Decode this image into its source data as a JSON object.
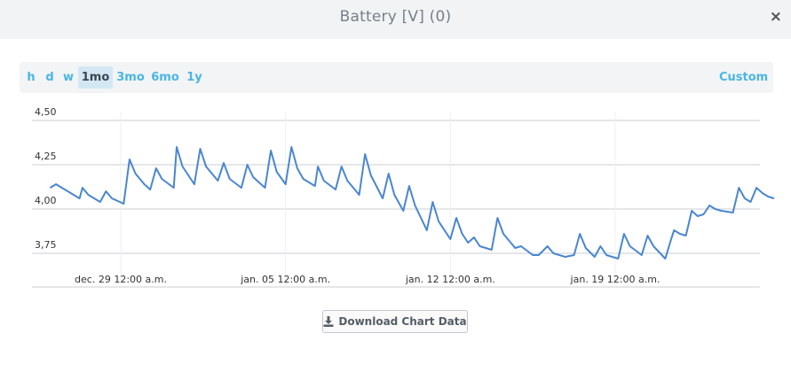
{
  "modal": {
    "title": "Battery [V] (0)",
    "close_icon": "×"
  },
  "range": {
    "buttons": [
      "h",
      "d",
      "w",
      "1mo",
      "3mo",
      "6mo",
      "1y"
    ],
    "active": "1mo",
    "custom_label": "Custom"
  },
  "download_label": "Download Chart Data",
  "chart_data": {
    "type": "line",
    "title": "",
    "xlabel": "",
    "ylabel": "",
    "y_ticks": [
      "4,50",
      "4,25",
      "4,00",
      "3,75"
    ],
    "y_tick_values": [
      4.5,
      4.25,
      4.0,
      3.75
    ],
    "ylim": [
      3.7,
      4.5
    ],
    "x_ticks": [
      "dec. 29 12:00 a.m.",
      "jan. 05 12:00 a.m.",
      "jan. 12 12:00 a.m.",
      "jan. 19 12:00 a.m."
    ],
    "x_tick_values": [
      "2023-12-29T00:00",
      "2024-01-05T00:00",
      "2024-01-12T00:00",
      "2024-01-19T00:00"
    ],
    "grid": true,
    "line_color": "#4a86d0",
    "series": [
      {
        "values": [
          [
            "2023-12-26T00:00",
            4.12
          ],
          [
            "2023-12-26T06:00",
            4.14
          ],
          [
            "2023-12-26T12:00",
            4.12
          ],
          [
            "2023-12-27T00:00",
            4.08
          ],
          [
            "2023-12-27T06:00",
            4.06
          ],
          [
            "2023-12-27T09:00",
            4.12
          ],
          [
            "2023-12-27T15:00",
            4.08
          ],
          [
            "2023-12-28T03:00",
            4.04
          ],
          [
            "2023-12-28T09:00",
            4.1
          ],
          [
            "2023-12-28T15:00",
            4.06
          ],
          [
            "2023-12-29T03:00",
            4.03
          ],
          [
            "2023-12-29T09:00",
            4.28
          ],
          [
            "2023-12-29T15:00",
            4.2
          ],
          [
            "2023-12-30T00:00",
            4.14
          ],
          [
            "2023-12-30T06:00",
            4.11
          ],
          [
            "2023-12-30T12:00",
            4.23
          ],
          [
            "2023-12-30T18:00",
            4.17
          ],
          [
            "2023-12-31T06:00",
            4.12
          ],
          [
            "2023-12-31T09:00",
            4.35
          ],
          [
            "2023-12-31T15:00",
            4.24
          ],
          [
            "2024-01-01T03:00",
            4.14
          ],
          [
            "2024-01-01T09:00",
            4.34
          ],
          [
            "2024-01-01T15:00",
            4.24
          ],
          [
            "2024-01-02T03:00",
            4.16
          ],
          [
            "2024-01-02T09:00",
            4.26
          ],
          [
            "2024-01-02T15:00",
            4.17
          ],
          [
            "2024-01-03T03:00",
            4.12
          ],
          [
            "2024-01-03T09:00",
            4.25
          ],
          [
            "2024-01-03T15:00",
            4.18
          ],
          [
            "2024-01-04T03:00",
            4.12
          ],
          [
            "2024-01-04T09:00",
            4.33
          ],
          [
            "2024-01-04T15:00",
            4.21
          ],
          [
            "2024-01-05T00:00",
            4.14
          ],
          [
            "2024-01-05T06:00",
            4.35
          ],
          [
            "2024-01-05T12:00",
            4.23
          ],
          [
            "2024-01-05T18:00",
            4.17
          ],
          [
            "2024-01-06T06:00",
            4.13
          ],
          [
            "2024-01-06T09:00",
            4.24
          ],
          [
            "2024-01-06T15:00",
            4.16
          ],
          [
            "2024-01-07T03:00",
            4.11
          ],
          [
            "2024-01-07T09:00",
            4.24
          ],
          [
            "2024-01-07T15:00",
            4.16
          ],
          [
            "2024-01-08T03:00",
            4.08
          ],
          [
            "2024-01-08T09:00",
            4.31
          ],
          [
            "2024-01-08T15:00",
            4.19
          ],
          [
            "2024-01-09T03:00",
            4.06
          ],
          [
            "2024-01-09T09:00",
            4.2
          ],
          [
            "2024-01-09T15:00",
            4.08
          ],
          [
            "2024-01-10T00:00",
            3.99
          ],
          [
            "2024-01-10T06:00",
            4.13
          ],
          [
            "2024-01-10T12:00",
            4.02
          ],
          [
            "2024-01-11T00:00",
            3.88
          ],
          [
            "2024-01-11T06:00",
            4.04
          ],
          [
            "2024-01-11T12:00",
            3.93
          ],
          [
            "2024-01-12T00:00",
            3.83
          ],
          [
            "2024-01-12T06:00",
            3.95
          ],
          [
            "2024-01-12T12:00",
            3.86
          ],
          [
            "2024-01-12T18:00",
            3.81
          ],
          [
            "2024-01-13T00:00",
            3.84
          ],
          [
            "2024-01-13T06:00",
            3.79
          ],
          [
            "2024-01-13T18:00",
            3.77
          ],
          [
            "2024-01-14T00:00",
            3.95
          ],
          [
            "2024-01-14T06:00",
            3.86
          ],
          [
            "2024-01-14T18:00",
            3.78
          ],
          [
            "2024-01-15T00:00",
            3.79
          ],
          [
            "2024-01-15T12:00",
            3.74
          ],
          [
            "2024-01-15T18:00",
            3.74
          ],
          [
            "2024-01-16T03:00",
            3.79
          ],
          [
            "2024-01-16T09:00",
            3.75
          ],
          [
            "2024-01-16T21:00",
            3.73
          ],
          [
            "2024-01-17T06:00",
            3.74
          ],
          [
            "2024-01-17T12:00",
            3.86
          ],
          [
            "2024-01-17T18:00",
            3.78
          ],
          [
            "2024-01-18T03:00",
            3.73
          ],
          [
            "2024-01-18T09:00",
            3.79
          ],
          [
            "2024-01-18T15:00",
            3.74
          ],
          [
            "2024-01-19T03:00",
            3.72
          ],
          [
            "2024-01-19T09:00",
            3.86
          ],
          [
            "2024-01-19T15:00",
            3.79
          ],
          [
            "2024-01-20T03:00",
            3.74
          ],
          [
            "2024-01-20T09:00",
            3.85
          ],
          [
            "2024-01-20T15:00",
            3.79
          ],
          [
            "2024-01-21T03:00",
            3.72
          ],
          [
            "2024-01-21T09:00",
            3.83
          ],
          [
            "2024-01-21T12:00",
            3.88
          ],
          [
            "2024-01-21T18:00",
            3.86
          ],
          [
            "2024-01-22T00:00",
            3.85
          ],
          [
            "2024-01-22T06:00",
            3.99
          ],
          [
            "2024-01-22T12:00",
            3.96
          ],
          [
            "2024-01-22T18:00",
            3.97
          ],
          [
            "2024-01-23T00:00",
            4.02
          ],
          [
            "2024-01-23T06:00",
            4.0
          ],
          [
            "2024-01-23T12:00",
            3.99
          ],
          [
            "2024-01-24T00:00",
            3.98
          ],
          [
            "2024-01-24T06:00",
            4.12
          ],
          [
            "2024-01-24T12:00",
            4.06
          ],
          [
            "2024-01-24T18:00",
            4.04
          ],
          [
            "2024-01-25T00:00",
            4.12
          ],
          [
            "2024-01-25T06:00",
            4.09
          ],
          [
            "2024-01-25T12:00",
            4.07
          ],
          [
            "2024-01-25T18:00",
            4.06
          ]
        ]
      }
    ]
  }
}
